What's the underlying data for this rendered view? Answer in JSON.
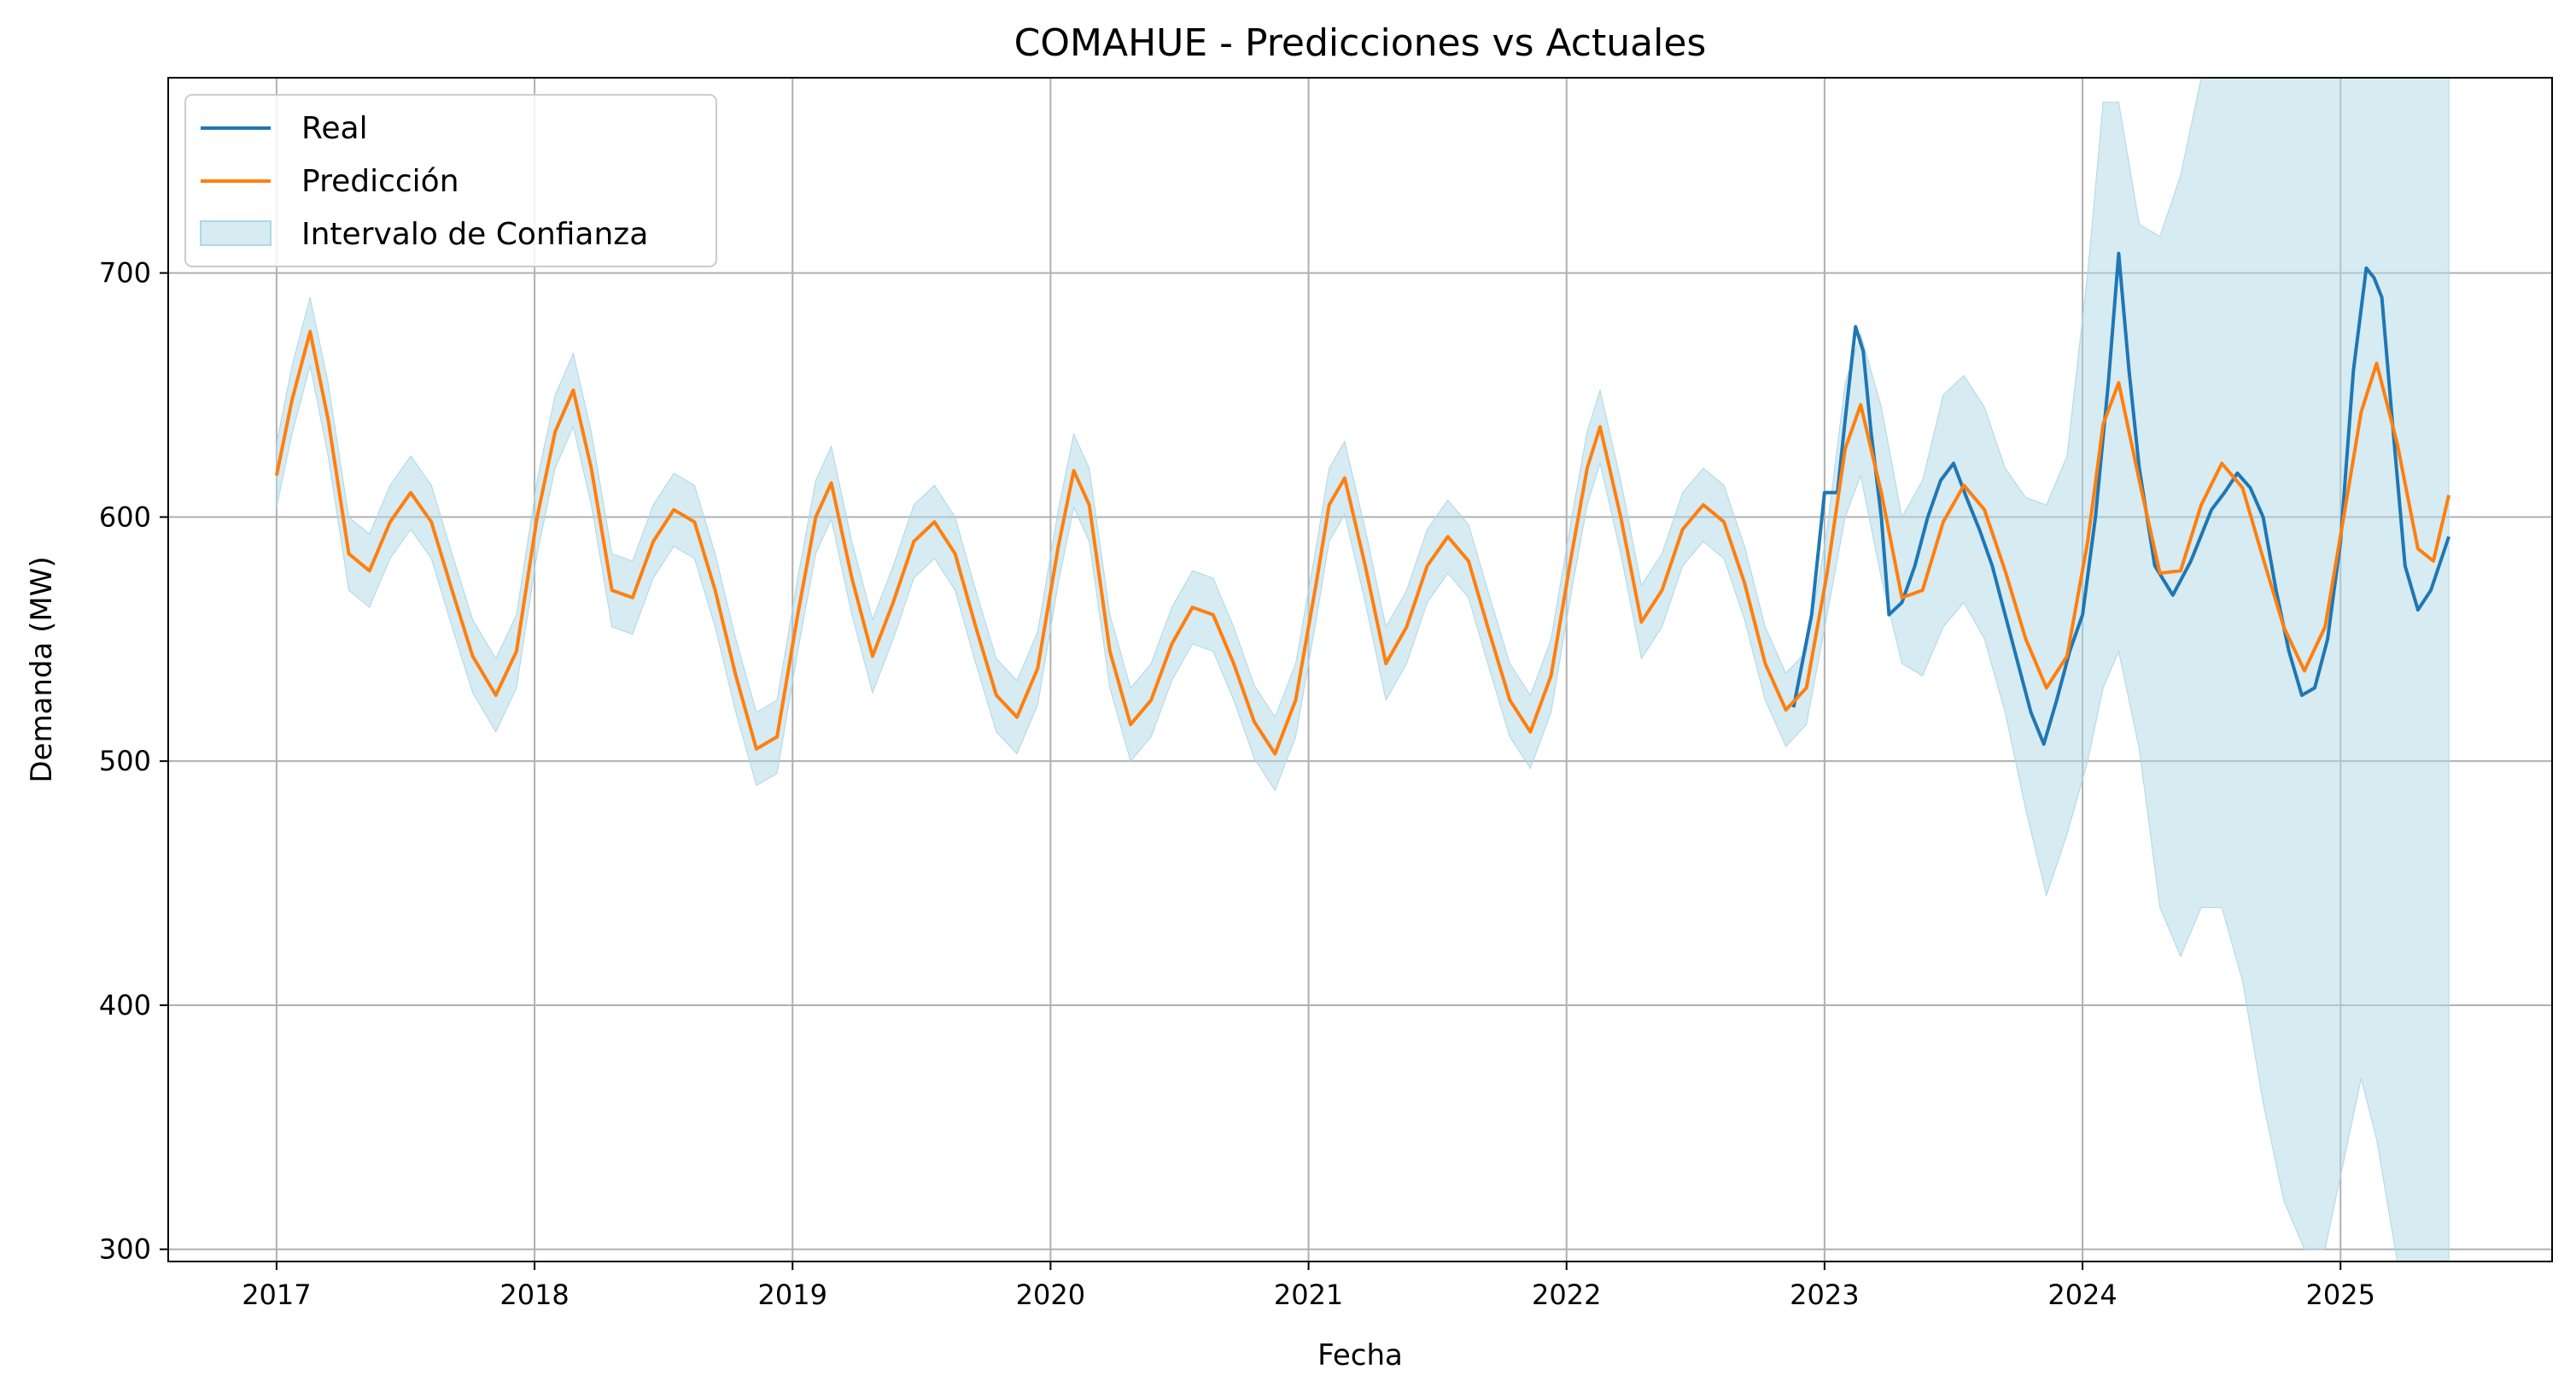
{
  "chart_data": {
    "type": "line",
    "title": "COMAHUE - Predicciones vs Actuales",
    "xlabel": "Fecha",
    "ylabel": "Demanda (MW)",
    "xlim": [
      2016.58,
      2025.82
    ],
    "ylim": [
      295,
      780
    ],
    "x_ticks": [
      2017,
      2018,
      2019,
      2020,
      2021,
      2022,
      2023,
      2024,
      2025
    ],
    "x_tick_labels": [
      "2017",
      "2018",
      "2019",
      "2020",
      "2021",
      "2022",
      "2023",
      "2024",
      "2025"
    ],
    "y_ticks": [
      300,
      400,
      500,
      600,
      700
    ],
    "y_tick_labels": [
      "300",
      "400",
      "500",
      "600",
      "700"
    ],
    "grid": true,
    "legend_position": "top-left",
    "colors": {
      "real": "#1f77b4",
      "prediccion": "#ff7f0e",
      "intervalo": "#add8e6"
    },
    "series": [
      {
        "name": "Real",
        "x": [
          2022.88,
          2022.95,
          2023.0,
          2023.05,
          2023.08,
          2023.12,
          2023.15,
          2023.18,
          2023.22,
          2023.25,
          2023.3,
          2023.35,
          2023.4,
          2023.45,
          2023.5,
          2023.55,
          2023.6,
          2023.65,
          2023.7,
          2023.75,
          2023.8,
          2023.85,
          2023.9,
          2023.95,
          2024.0,
          2024.05,
          2024.1,
          2024.14,
          2024.18,
          2024.22,
          2024.28,
          2024.35,
          2024.42,
          2024.5,
          2024.55,
          2024.6,
          2024.65,
          2024.7,
          2024.75,
          2024.8,
          2024.85,
          2024.9,
          2024.95,
          2025.0,
          2025.05,
          2025.1,
          2025.13,
          2025.16,
          2025.2,
          2025.25,
          2025.3,
          2025.35,
          2025.42
        ],
        "values": [
          522,
          560,
          610,
          610,
          640,
          678,
          668,
          635,
          600,
          560,
          565,
          580,
          600,
          615,
          622,
          608,
          595,
          580,
          560,
          540,
          520,
          507,
          525,
          545,
          560,
          600,
          655,
          708,
          660,
          620,
          580,
          568,
          582,
          603,
          610,
          618,
          612,
          600,
          570,
          545,
          527,
          530,
          550,
          590,
          660,
          702,
          698,
          690,
          640,
          580,
          562,
          570,
          592
        ]
      },
      {
        "name": "Predicción",
        "x": [
          2017.0,
          2017.06,
          2017.13,
          2017.2,
          2017.28,
          2017.36,
          2017.44,
          2017.52,
          2017.6,
          2017.68,
          2017.76,
          2017.85,
          2017.93,
          2018.01,
          2018.08,
          2018.15,
          2018.22,
          2018.3,
          2018.38,
          2018.46,
          2018.54,
          2018.62,
          2018.7,
          2018.78,
          2018.86,
          2018.94,
          2019.02,
          2019.09,
          2019.15,
          2019.23,
          2019.31,
          2019.39,
          2019.47,
          2019.55,
          2019.63,
          2019.71,
          2019.79,
          2019.87,
          2019.95,
          2020.03,
          2020.09,
          2020.15,
          2020.23,
          2020.31,
          2020.39,
          2020.47,
          2020.55,
          2020.63,
          2020.71,
          2020.79,
          2020.87,
          2020.95,
          2021.03,
          2021.08,
          2021.14,
          2021.22,
          2021.3,
          2021.38,
          2021.46,
          2021.54,
          2021.62,
          2021.7,
          2021.78,
          2021.86,
          2021.94,
          2022.02,
          2022.08,
          2022.13,
          2022.21,
          2022.29,
          2022.37,
          2022.45,
          2022.53,
          2022.61,
          2022.69,
          2022.77,
          2022.85,
          2022.93,
          2023.01,
          2023.08,
          2023.14,
          2023.22,
          2023.3,
          2023.38,
          2023.46,
          2023.54,
          2023.62,
          2023.7,
          2023.78,
          2023.86,
          2023.94,
          2024.02,
          2024.08,
          2024.14,
          2024.22,
          2024.3,
          2024.38,
          2024.46,
          2024.54,
          2024.62,
          2024.7,
          2024.78,
          2024.86,
          2024.94,
          2025.02,
          2025.08,
          2025.14,
          2025.22,
          2025.3,
          2025.36,
          2025.42
        ],
        "values": [
          617,
          648,
          676,
          640,
          585,
          578,
          598,
          610,
          598,
          570,
          543,
          527,
          545,
          600,
          635,
          652,
          620,
          570,
          567,
          590,
          603,
          598,
          570,
          535,
          505,
          510,
          560,
          600,
          614,
          575,
          543,
          565,
          590,
          598,
          585,
          555,
          527,
          518,
          538,
          588,
          619,
          605,
          545,
          515,
          525,
          548,
          563,
          560,
          540,
          516,
          503,
          525,
          573,
          605,
          616,
          580,
          540,
          555,
          580,
          592,
          582,
          553,
          525,
          512,
          535,
          585,
          620,
          637,
          600,
          557,
          570,
          595,
          605,
          598,
          573,
          540,
          521,
          530,
          577,
          628,
          646,
          610,
          567,
          570,
          598,
          613,
          603,
          578,
          550,
          530,
          543,
          590,
          638,
          655,
          615,
          577,
          578,
          605,
          622,
          612,
          583,
          555,
          537,
          555,
          605,
          643,
          663,
          630,
          587,
          582,
          609
        ]
      },
      {
        "name": "Intervalo de Confianza",
        "x": [
          2017.0,
          2017.06,
          2017.13,
          2017.2,
          2017.28,
          2017.36,
          2017.44,
          2017.52,
          2017.6,
          2017.68,
          2017.76,
          2017.85,
          2017.93,
          2018.01,
          2018.08,
          2018.15,
          2018.22,
          2018.3,
          2018.38,
          2018.46,
          2018.54,
          2018.62,
          2018.7,
          2018.78,
          2018.86,
          2018.94,
          2019.02,
          2019.09,
          2019.15,
          2019.23,
          2019.31,
          2019.39,
          2019.47,
          2019.55,
          2019.63,
          2019.71,
          2019.79,
          2019.87,
          2019.95,
          2020.03,
          2020.09,
          2020.15,
          2020.23,
          2020.31,
          2020.39,
          2020.47,
          2020.55,
          2020.63,
          2020.71,
          2020.79,
          2020.87,
          2020.95,
          2021.03,
          2021.08,
          2021.14,
          2021.22,
          2021.3,
          2021.38,
          2021.46,
          2021.54,
          2021.62,
          2021.7,
          2021.78,
          2021.86,
          2021.94,
          2022.02,
          2022.08,
          2022.13,
          2022.21,
          2022.29,
          2022.37,
          2022.45,
          2022.53,
          2022.61,
          2022.69,
          2022.77,
          2022.85,
          2022.93,
          2023.01,
          2023.08,
          2023.14,
          2023.22,
          2023.3,
          2023.38,
          2023.46,
          2023.54,
          2023.62,
          2023.7,
          2023.78,
          2023.86,
          2023.94,
          2024.02,
          2024.08,
          2024.14,
          2024.22,
          2024.3,
          2024.38,
          2024.46,
          2024.54,
          2024.62,
          2024.7,
          2024.78,
          2024.86,
          2024.94,
          2025.02,
          2025.08,
          2025.14,
          2025.22,
          2025.3,
          2025.36,
          2025.42
        ],
        "upper": [
          630,
          662,
          690,
          655,
          600,
          593,
          613,
          625,
          613,
          585,
          558,
          542,
          560,
          615,
          650,
          667,
          635,
          585,
          582,
          605,
          618,
          613,
          585,
          550,
          520,
          525,
          575,
          615,
          629,
          590,
          558,
          580,
          605,
          613,
          600,
          570,
          542,
          533,
          553,
          603,
          634,
          620,
          560,
          530,
          540,
          563,
          578,
          575,
          555,
          531,
          518,
          540,
          588,
          620,
          631,
          595,
          555,
          570,
          595,
          607,
          597,
          568,
          540,
          527,
          550,
          600,
          635,
          652,
          615,
          572,
          585,
          610,
          620,
          613,
          588,
          555,
          536,
          545,
          595,
          655,
          675,
          645,
          600,
          615,
          650,
          658,
          645,
          620,
          608,
          605,
          625,
          700,
          770,
          770,
          720,
          715,
          740,
          780,
          780,
          780,
          780,
          780,
          780,
          780,
          780,
          780,
          780,
          780,
          780,
          780,
          780
        ],
        "lower": [
          604,
          634,
          662,
          625,
          570,
          563,
          583,
          595,
          583,
          555,
          528,
          512,
          530,
          585,
          620,
          637,
          605,
          555,
          552,
          575,
          588,
          583,
          555,
          520,
          490,
          495,
          545,
          585,
          599,
          560,
          528,
          550,
          575,
          583,
          570,
          540,
          512,
          503,
          523,
          573,
          604,
          590,
          530,
          500,
          510,
          533,
          548,
          545,
          525,
          501,
          488,
          510,
          558,
          590,
          601,
          565,
          525,
          540,
          565,
          577,
          567,
          538,
          510,
          497,
          520,
          570,
          605,
          622,
          585,
          542,
          555,
          580,
          590,
          583,
          558,
          525,
          506,
          515,
          560,
          600,
          617,
          575,
          540,
          535,
          555,
          565,
          550,
          520,
          480,
          445,
          470,
          500,
          530,
          545,
          505,
          440,
          420,
          440,
          440,
          410,
          360,
          320,
          300,
          300,
          340,
          370,
          345,
          295,
          295,
          295,
          295
        ]
      }
    ]
  }
}
